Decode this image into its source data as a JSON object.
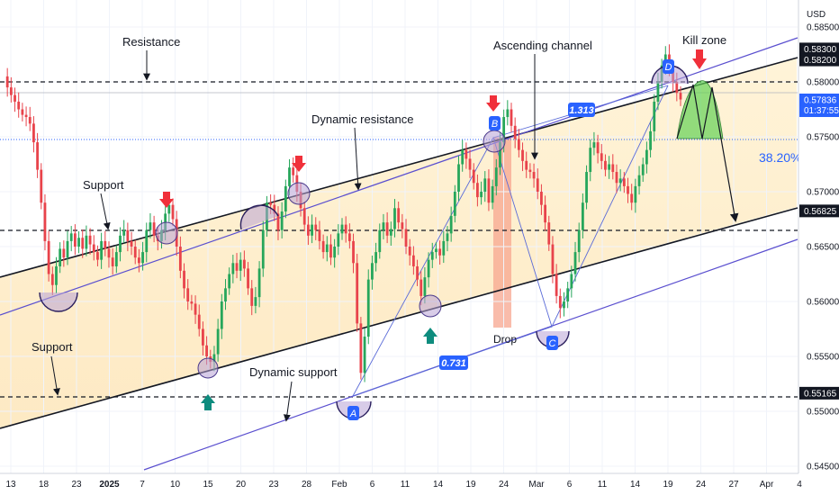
{
  "chart_data": {
    "type": "candlestick",
    "currency": "USD",
    "ylim": [
      0.5445,
      0.5868
    ],
    "y_ticks": [
      "0.58500",
      "0.58000",
      "0.57500",
      "0.57000",
      "0.56500",
      "0.56000",
      "0.55500",
      "0.55000",
      "0.54500"
    ],
    "x_tick_labels": [
      "13",
      "18",
      "23",
      "2025",
      "7",
      "10",
      "15",
      "20",
      "23",
      "28",
      "Feb",
      "6",
      "11",
      "14",
      "19",
      "24",
      "Mar",
      "6",
      "11",
      "14",
      "19",
      "24",
      "27",
      "Apr",
      "4"
    ],
    "price_tags": [
      {
        "label": "0.58300",
        "value": 0.583,
        "style": "dark"
      },
      {
        "label": "0.58200",
        "value": 0.582,
        "style": "dark"
      },
      {
        "label": "0.57836",
        "value": 0.57836,
        "style": "blue",
        "sub": "01:37:55"
      },
      {
        "label": "0.56825",
        "value": 0.56825,
        "style": "dark"
      },
      {
        "label": "0.55165",
        "value": 0.55165,
        "style": "dark"
      }
    ],
    "horizontal_levels": [
      0.583,
      0.56825,
      0.55165
    ],
    "annotations": {
      "resistance": "Resistance",
      "support_upper": "Support",
      "support_lower": "Support",
      "dynamic_resistance": "Dynamic resistance",
      "dynamic_support": "Dynamic support",
      "ascending_channel": "Ascending channel",
      "kill_zone": "Kill zone",
      "drop": "Drop",
      "fib": "38.20%",
      "ratio_upper": "1.313",
      "ratio_lower": "0.731",
      "point_a": "A",
      "point_b": "B",
      "point_c": "C",
      "point_d": "D"
    },
    "pattern_points": {
      "A": {
        "date": "Feb 3",
        "price": 0.552
      },
      "B": {
        "date": "Feb 21",
        "price": 0.5779
      },
      "C": {
        "date": "Mar 3",
        "price": 0.5592
      },
      "D": {
        "date": "Mar 17",
        "price": 0.5828
      }
    },
    "ohlc_path": [
      0.5805,
      0.5795,
      0.5788,
      0.5782,
      0.5775,
      0.577,
      0.5768,
      0.5762,
      0.5745,
      0.572,
      0.569,
      0.5655,
      0.5625,
      0.5615,
      0.5632,
      0.5648,
      0.564,
      0.5655,
      0.5662,
      0.565,
      0.5658,
      0.5648,
      0.566,
      0.5652,
      0.5645,
      0.5638,
      0.5655,
      0.5648,
      0.564,
      0.5632,
      0.5645,
      0.566,
      0.5665,
      0.5655,
      0.565,
      0.564,
      0.5635,
      0.5645,
      0.5665,
      0.5672,
      0.566,
      0.5655,
      0.5665,
      0.568,
      0.5688,
      0.5675,
      0.565,
      0.5628,
      0.5612,
      0.56,
      0.5598,
      0.5588,
      0.5575,
      0.556,
      0.555,
      0.5545,
      0.5552,
      0.5575,
      0.56,
      0.5612,
      0.5625,
      0.5635,
      0.5628,
      0.5638,
      0.563,
      0.5612,
      0.5596,
      0.5604,
      0.563,
      0.5665,
      0.569,
      0.5688,
      0.568,
      0.5665,
      0.5682,
      0.5705,
      0.5722,
      0.5715,
      0.57,
      0.5685,
      0.567,
      0.566,
      0.567,
      0.5665,
      0.5655,
      0.5645,
      0.5652,
      0.564,
      0.565,
      0.5662,
      0.567,
      0.5662,
      0.5655,
      0.5635,
      0.558,
      0.5535,
      0.5568,
      0.562,
      0.5635,
      0.5645,
      0.5665,
      0.5672,
      0.566,
      0.5666,
      0.5685,
      0.5672,
      0.5666,
      0.565,
      0.5642,
      0.5632,
      0.562,
      0.5605,
      0.5622,
      0.5638,
      0.5645,
      0.5648,
      0.5642,
      0.5655,
      0.5662,
      0.5678,
      0.57,
      0.5725,
      0.5738,
      0.573,
      0.572,
      0.5708,
      0.5695,
      0.57,
      0.5712,
      0.569,
      0.5705,
      0.5722,
      0.5745,
      0.5768,
      0.5775,
      0.576,
      0.5748,
      0.5738,
      0.5728,
      0.572,
      0.5718,
      0.5712,
      0.57,
      0.5688,
      0.5672,
      0.5652,
      0.5625,
      0.5605,
      0.5594,
      0.56,
      0.5612,
      0.5625,
      0.5645,
      0.5665,
      0.569,
      0.5718,
      0.574,
      0.5745,
      0.5735,
      0.5728,
      0.572,
      0.5725,
      0.5718,
      0.5708,
      0.5712,
      0.5705,
      0.5698,
      0.569,
      0.5705,
      0.5715,
      0.5725,
      0.5738,
      0.5755,
      0.5782,
      0.58,
      0.5815,
      0.5825,
      0.5812,
      0.58,
      0.579,
      0.5784
    ]
  }
}
